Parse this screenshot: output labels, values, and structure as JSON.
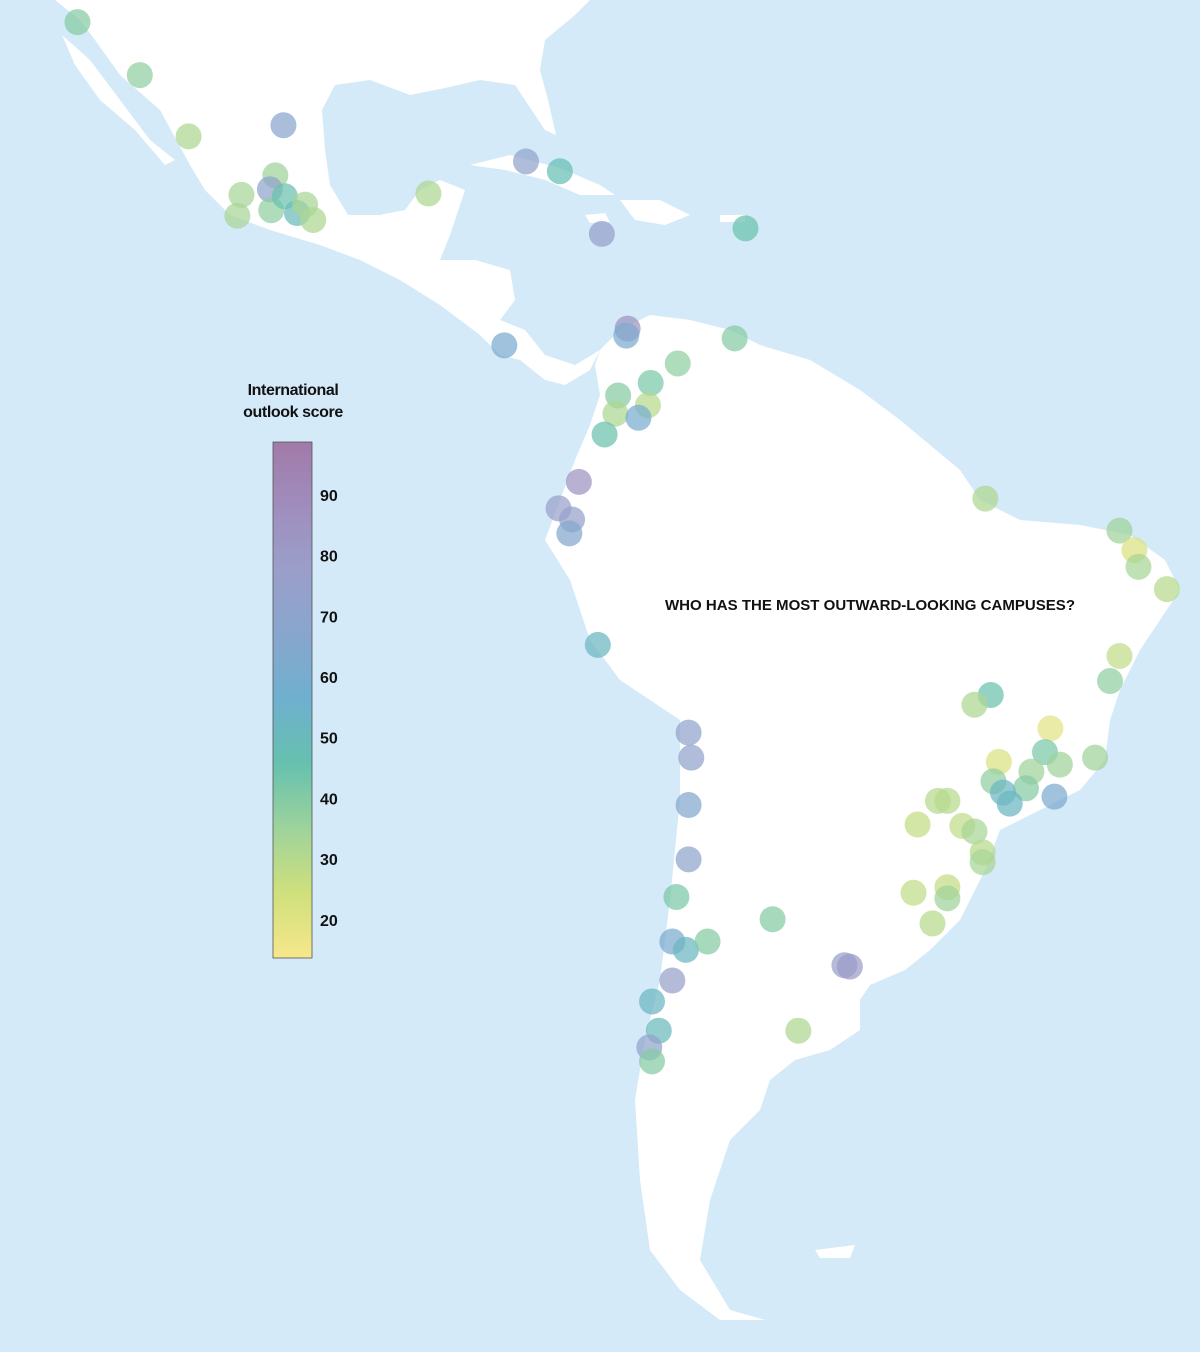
{
  "chart_data": {
    "type": "scatter-map",
    "title": "WHO HAS THE MOST OUTWARD-LOOKING CAMPUSES?",
    "colorbar_title": "International outlook score",
    "clim": [
      14,
      99
    ],
    "cticks": [
      20,
      30,
      40,
      50,
      60,
      70,
      80,
      90
    ],
    "colors": [
      "#f7e78c",
      "#cfe07c",
      "#9ed39c",
      "#66c1ae",
      "#6fb0cf",
      "#88a6cd",
      "#9a9fca",
      "#a08dbd",
      "#a17aa8"
    ],
    "x": [
      -115.3,
      -110.7,
      -107.1,
      -100.1,
      -100.7,
      -103.2,
      -103.5,
      -101.1,
      -101.0,
      -100.0,
      -99.1,
      -98.5,
      -97.9,
      -89.4,
      -82.2,
      -79.7,
      -76.6,
      -66.0,
      -83.8,
      -74.7,
      -74.8,
      -66.8,
      -71.0,
      -73.0,
      -75.4,
      -75.6,
      -73.2,
      -73.9,
      -76.4,
      -78.3,
      -79.8,
      -78.8,
      -79.0,
      -76.9,
      -48.3,
      -38.4,
      -37.3,
      -37.0,
      -34.9,
      -38.4,
      -39.1,
      -47.9,
      -49.1,
      -43.5,
      -47.3,
      -43.9,
      -42.8,
      -40.2,
      -44.9,
      -47.7,
      -45.3,
      -47.0,
      -46.5,
      -43.2,
      -51.8,
      -51.1,
      -53.3,
      -50.0,
      -49.1,
      -48.5,
      -48.5,
      -53.6,
      -51.1,
      -51.1,
      -52.2,
      -70.2,
      -70.0,
      -70.2,
      -70.2,
      -71.1,
      -64.0,
      -71.4,
      -70.4,
      -68.8,
      -58.7,
      -58.3,
      -71.4,
      -72.9,
      -72.4,
      -73.1,
      -72.9,
      -62.1
    ],
    "y": [
      33.1,
      29.3,
      24.9,
      25.7,
      22.1,
      20.7,
      19.2,
      21.1,
      19.6,
      20.6,
      19.4,
      20.0,
      18.9,
      20.8,
      23.1,
      22.4,
      17.9,
      18.3,
      9.9,
      11.1,
      10.6,
      10.4,
      8.6,
      7.2,
      6.3,
      5.0,
      5.6,
      4.7,
      3.5,
      0.1,
      -1.8,
      -2.6,
      -3.6,
      -11.6,
      -1.1,
      -3.4,
      -4.8,
      -6.0,
      -7.6,
      -12.4,
      -14.2,
      -15.2,
      -15.9,
      -17.6,
      -20.0,
      -19.3,
      -20.2,
      -19.7,
      -20.7,
      -21.4,
      -21.9,
      -22.2,
      -23.0,
      -22.5,
      -22.8,
      -22.8,
      -24.5,
      -24.6,
      -25.0,
      -26.5,
      -27.2,
      -29.4,
      -29.0,
      -29.8,
      -31.6,
      -17.9,
      -19.7,
      -23.1,
      -27.0,
      -29.7,
      -31.3,
      -32.9,
      -33.5,
      -32.9,
      -34.6,
      -34.7,
      -35.7,
      -37.2,
      -39.3,
      -40.5,
      -41.5,
      -39.3
    ],
    "values": [
      40,
      38,
      32,
      68,
      35,
      33,
      33,
      70,
      38,
      45,
      50,
      33,
      32,
      32,
      72,
      48,
      74,
      45,
      62,
      85,
      62,
      40,
      38,
      42,
      40,
      32,
      30,
      60,
      45,
      85,
      78,
      75,
      65,
      52,
      32,
      35,
      22,
      33,
      30,
      28,
      38,
      45,
      32,
      20,
      22,
      42,
      35,
      35,
      35,
      38,
      40,
      52,
      52,
      62,
      30,
      30,
      27,
      28,
      33,
      30,
      33,
      28,
      27,
      35,
      30,
      72,
      72,
      65,
      70,
      42,
      40,
      62,
      52,
      40,
      75,
      80,
      75,
      52,
      50,
      72,
      40,
      32
    ]
  }
}
